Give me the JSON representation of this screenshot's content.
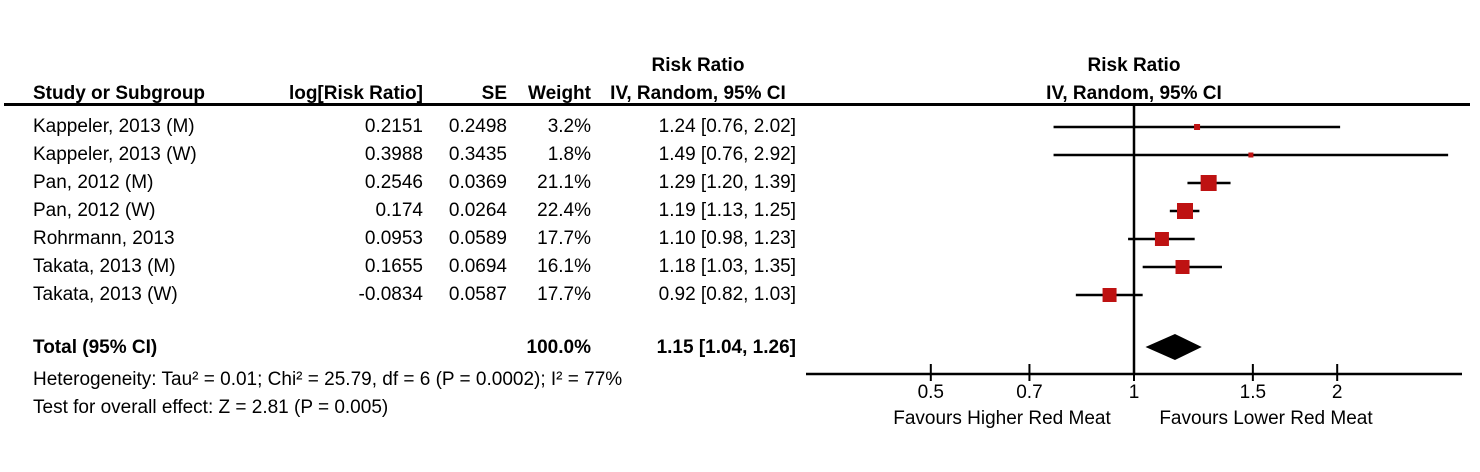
{
  "table": {
    "headers": {
      "study": "Study or Subgroup",
      "log_rr": "log[Risk Ratio]",
      "se": "SE",
      "weight": "Weight",
      "effect_top": "Risk Ratio",
      "effect_bottom": "IV, Random, 95% CI"
    },
    "total": {
      "label": "Total (95% CI)",
      "weight": "100.0%",
      "effect": "1.15 [1.04, 1.26]"
    },
    "heterogeneity": "Heterogeneity: Tau² = 0.01; Chi² = 25.79, df = 6 (P = 0.0002); I² = 77%",
    "overall_effect": "Test for overall effect: Z = 2.81 (P = 0.005)"
  },
  "chart_data": {
    "type": "forest",
    "effect_measure": "Risk Ratio",
    "model": "IV, Random, 95% CI",
    "x_scale": "log",
    "plot_header_top": "Risk Ratio",
    "plot_header_bottom": "IV, Random, 95% CI",
    "axis_ticks": [
      0.5,
      0.7,
      1,
      1.5,
      2
    ],
    "x_axis_labels": {
      "left": "Favours Higher Red Meat",
      "right": "Favours Lower Red Meat"
    },
    "studies": [
      {
        "name": "Kappeler, 2013 (M)",
        "log_rr": "0.2151",
        "se": "0.2498",
        "weight": "3.2%",
        "weight_pct": 3.2,
        "effect_text": "1.24 [0.76, 2.02]",
        "rr": 1.24,
        "ci_low": 0.76,
        "ci_high": 2.02
      },
      {
        "name": "Kappeler, 2013 (W)",
        "log_rr": "0.3988",
        "se": "0.3435",
        "weight": "1.8%",
        "weight_pct": 1.8,
        "effect_text": "1.49 [0.76, 2.92]",
        "rr": 1.49,
        "ci_low": 0.76,
        "ci_high": 2.92
      },
      {
        "name": "Pan, 2012 (M)",
        "log_rr": "0.2546",
        "se": "0.0369",
        "weight": "21.1%",
        "weight_pct": 21.1,
        "effect_text": "1.29 [1.20, 1.39]",
        "rr": 1.29,
        "ci_low": 1.2,
        "ci_high": 1.39
      },
      {
        "name": "Pan, 2012 (W)",
        "log_rr": "0.174",
        "se": "0.0264",
        "weight": "22.4%",
        "weight_pct": 22.4,
        "effect_text": "1.19 [1.13, 1.25]",
        "rr": 1.19,
        "ci_low": 1.13,
        "ci_high": 1.25
      },
      {
        "name": "Rohrmann, 2013",
        "log_rr": "0.0953",
        "se": "0.0589",
        "weight": "17.7%",
        "weight_pct": 17.7,
        "effect_text": "1.10 [0.98, 1.23]",
        "rr": 1.1,
        "ci_low": 0.98,
        "ci_high": 1.23
      },
      {
        "name": "Takata, 2013 (M)",
        "log_rr": "0.1655",
        "se": "0.0694",
        "weight": "16.1%",
        "weight_pct": 16.1,
        "effect_text": "1.18 [1.03, 1.35]",
        "rr": 1.18,
        "ci_low": 1.03,
        "ci_high": 1.35
      },
      {
        "name": "Takata, 2013 (W)",
        "log_rr": "-0.0834",
        "se": "0.0587",
        "weight": "17.7%",
        "weight_pct": 17.7,
        "effect_text": "0.92 [0.82, 1.03]",
        "rr": 0.92,
        "ci_low": 0.82,
        "ci_high": 1.03
      }
    ],
    "total": {
      "rr": 1.15,
      "ci_low": 1.04,
      "ci_high": 1.26
    },
    "colors": {
      "marker": "#BE1212",
      "line": "#000000",
      "diamond": "#000000"
    }
  }
}
